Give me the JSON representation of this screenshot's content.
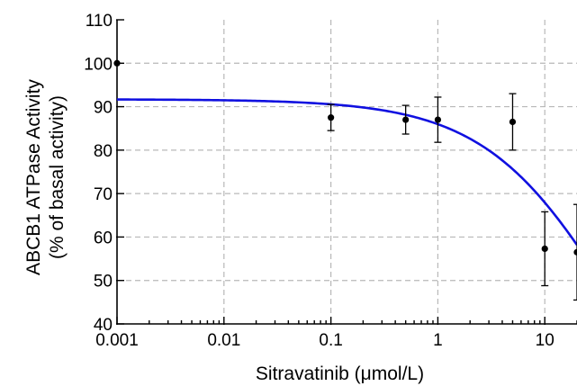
{
  "chart_data": {
    "type": "scatter",
    "title": "",
    "xlabel": "Sitravatinib (μmol/L)",
    "ylabel": "ABCB1 ATPase Activity",
    "ylabel2": "(% of basal activity)",
    "x_scale": "log",
    "xlim": [
      0.001,
      20
    ],
    "ylim": [
      40,
      110
    ],
    "x_ticks": [
      0.001,
      0.01,
      0.1,
      1,
      10
    ],
    "x_tick_labels": [
      "0.001",
      "0.01",
      "0.1",
      "1",
      "10"
    ],
    "y_ticks": [
      40,
      50,
      60,
      70,
      80,
      90,
      100,
      110
    ],
    "y_tick_labels": [
      "40",
      "50",
      "60",
      "70",
      "80",
      "90",
      "100",
      "110"
    ],
    "grid": true,
    "points": [
      {
        "x": 0.001,
        "y": 100,
        "err": 0
      },
      {
        "x": 0.1,
        "y": 87.5,
        "err": 3.0
      },
      {
        "x": 0.5,
        "y": 87.0,
        "err": 3.3
      },
      {
        "x": 1,
        "y": 87.0,
        "err": 5.2
      },
      {
        "x": 5,
        "y": 86.5,
        "err": 6.5
      },
      {
        "x": 10,
        "y": 57.3,
        "err": 8.5
      },
      {
        "x": 20,
        "y": 56.5,
        "err": 11.0
      }
    ],
    "fit_curve": {
      "type": "sigmoid",
      "top": 91.7,
      "bottom": 0,
      "ec50": 43,
      "hill": 0.72,
      "color": "#1010e0"
    },
    "point_color": "#000000"
  }
}
